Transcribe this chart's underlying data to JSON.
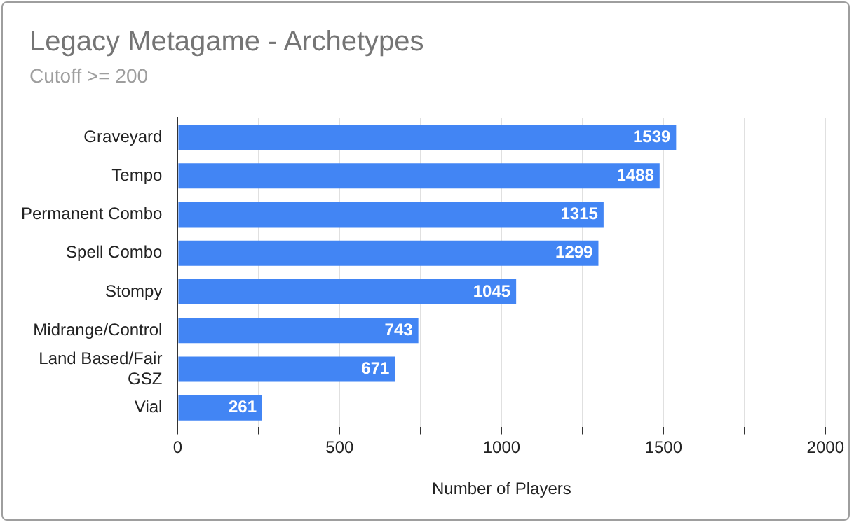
{
  "chart_data": {
    "type": "bar",
    "orientation": "horizontal",
    "title": "Legacy Metagame - Archetypes",
    "subtitle": "Cutoff >= 200",
    "xlabel": "Number of Players",
    "categories": [
      "Graveyard",
      "Tempo",
      "Permanent Combo",
      "Spell Combo",
      "Stompy",
      "Midrange/Control",
      "Land Based/Fair GSZ",
      "Vial"
    ],
    "values": [
      1539,
      1488,
      1315,
      1299,
      1045,
      743,
      671,
      261
    ],
    "color": "#4285f4",
    "xlim": [
      0,
      2000
    ],
    "xticks": [
      0,
      {
        "value": 250,
        "label": null
      },
      500,
      {
        "value": 750,
        "label": null
      },
      1000,
      {
        "value": 1250,
        "label": null
      },
      1500,
      {
        "value": 1750,
        "label": null
      },
      2000
    ],
    "grid": "x",
    "data_labels": true,
    "legend": false
  }
}
